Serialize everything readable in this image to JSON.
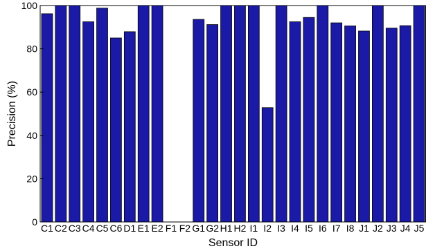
{
  "chart_data": {
    "type": "bar",
    "xlabel": "Sensor ID",
    "ylabel": "Precision (%)",
    "ylim": [
      0,
      100
    ],
    "yticks": [
      0,
      20,
      40,
      60,
      80,
      100
    ],
    "grid": false,
    "bar_color": "#1a1aa6",
    "categories": [
      "C1",
      "C2",
      "C3",
      "C4",
      "C5",
      "C6",
      "D1",
      "E1",
      "E2",
      "F1",
      "F2",
      "G1",
      "G2",
      "H1",
      "H2",
      "I1",
      "I2",
      "I3",
      "I4",
      "I5",
      "I6",
      "I7",
      "I8",
      "J1",
      "J2",
      "J3",
      "J4",
      "J5"
    ],
    "values": [
      96.2,
      100,
      100,
      92.5,
      98.8,
      85,
      87.9,
      100,
      100,
      0,
      0,
      93.6,
      91.2,
      100,
      100,
      100,
      52.8,
      100,
      92.5,
      94.5,
      100,
      92,
      90.6,
      88.2,
      100,
      89.6,
      90.7,
      100
    ]
  }
}
